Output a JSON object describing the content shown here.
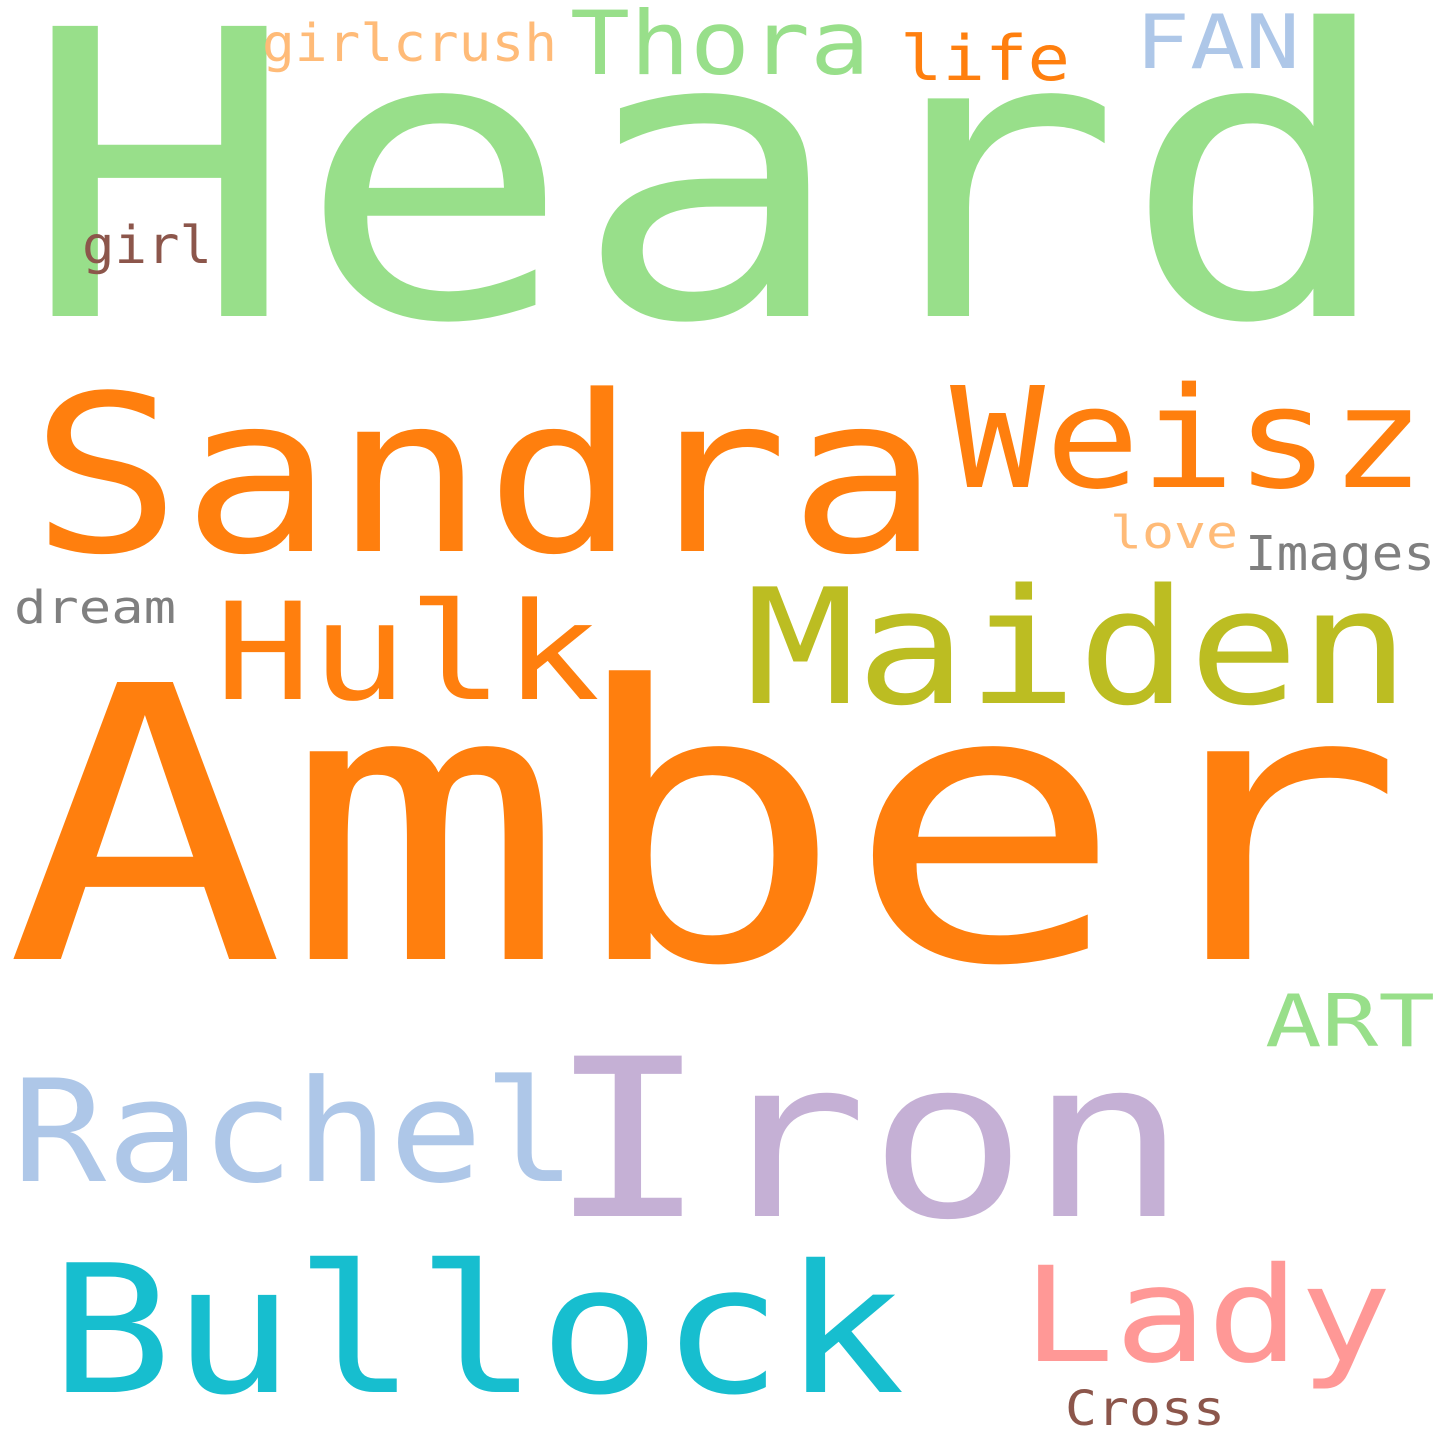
{
  "words": [
    {
      "id": "heard",
      "text": "Heard",
      "color": "#98df8a"
    },
    {
      "id": "amber",
      "text": "Amber",
      "color": "#ff7f0e"
    },
    {
      "id": "sandra",
      "text": "Sandra",
      "color": "#ff7f0e"
    },
    {
      "id": "weisz",
      "text": "Weisz",
      "color": "#ff7f0e"
    },
    {
      "id": "maiden",
      "text": "Maiden",
      "color": "#bcbd22"
    },
    {
      "id": "iron",
      "text": "Iron",
      "color": "#c5b0d5"
    },
    {
      "id": "bullock",
      "text": "Bullock",
      "color": "#17becf"
    },
    {
      "id": "rachel",
      "text": "Rachel",
      "color": "#aec7e8"
    },
    {
      "id": "lady",
      "text": "Lady",
      "color": "#ff9896"
    },
    {
      "id": "hulk",
      "text": "Hulk",
      "color": "#ff7f0e"
    },
    {
      "id": "thora",
      "text": "Thora",
      "color": "#98df8a"
    },
    {
      "id": "fan",
      "text": "FAN",
      "color": "#aec7e8"
    },
    {
      "id": "art",
      "text": "ART",
      "color": "#98df8a"
    },
    {
      "id": "life",
      "text": "life",
      "color": "#ff7f0e"
    },
    {
      "id": "girlcrush",
      "text": "girlcrush",
      "color": "#ffbb78"
    },
    {
      "id": "girl",
      "text": "girl",
      "color": "#8c564b"
    },
    {
      "id": "love",
      "text": "love",
      "color": "#ffbb78"
    },
    {
      "id": "images",
      "text": "Images",
      "color": "#7f7f7f"
    },
    {
      "id": "dream",
      "text": "dream",
      "color": "#7f7f7f"
    },
    {
      "id": "cross",
      "text": "Cross",
      "color": "#8c564b"
    }
  ]
}
